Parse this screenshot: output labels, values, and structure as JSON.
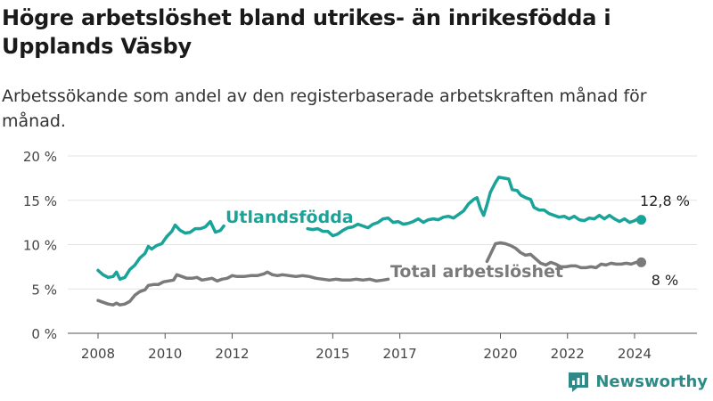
{
  "title": "Högre arbetslöshet bland utrikes- än inrikesfödda i Upplands Väsby",
  "subtitle": "Arbetssökande som andel av den registerbaserade arbetskraften månad för månad.",
  "brand": "Newsworthy",
  "colors": {
    "utlandsfodda": "#1aa398",
    "total": "#7a7a7a",
    "grid": "#e3e3e3",
    "axis": "#444444",
    "brand": "#2d8a86"
  },
  "chart_data": {
    "type": "line",
    "ylim": [
      0,
      20
    ],
    "y_ticks": [
      0,
      5,
      10,
      15,
      20
    ],
    "y_tick_labels": [
      "0 %",
      "5 %",
      "10 %",
      "15 %",
      "20 %"
    ],
    "x_ticks": [
      2008,
      2010,
      2012,
      2015,
      2017,
      2020,
      2022,
      2024
    ],
    "x_tick_labels": [
      "2008",
      "2010",
      "2012",
      "2015",
      "2017",
      "2020",
      "2022",
      "2024"
    ],
    "grid": "horizontal",
    "legend": "inline labels",
    "series": [
      {
        "name": "Utlandsfödda",
        "end_label": "12,8 %",
        "segments": [
          [
            [
              2008.0,
              7.1
            ],
            [
              2008.15,
              6.6
            ],
            [
              2008.3,
              6.3
            ],
            [
              2008.45,
              6.4
            ],
            [
              2008.55,
              6.9
            ],
            [
              2008.65,
              6.1
            ],
            [
              2008.8,
              6.3
            ],
            [
              2008.95,
              7.2
            ],
            [
              2009.1,
              7.7
            ],
            [
              2009.25,
              8.5
            ],
            [
              2009.4,
              9.0
            ],
            [
              2009.5,
              9.8
            ],
            [
              2009.6,
              9.5
            ],
            [
              2009.75,
              9.9
            ],
            [
              2009.9,
              10.1
            ],
            [
              2010.05,
              10.9
            ],
            [
              2010.2,
              11.5
            ],
            [
              2010.3,
              12.2
            ],
            [
              2010.45,
              11.6
            ],
            [
              2010.6,
              11.3
            ],
            [
              2010.75,
              11.4
            ],
            [
              2010.9,
              11.8
            ],
            [
              2011.05,
              11.8
            ],
            [
              2011.2,
              12.0
            ],
            [
              2011.35,
              12.6
            ],
            [
              2011.5,
              11.4
            ],
            [
              2011.65,
              11.6
            ],
            [
              2011.75,
              12.1
            ]
          ],
          [
            [
              2014.25,
              11.8
            ],
            [
              2014.4,
              11.7
            ],
            [
              2014.55,
              11.8
            ],
            [
              2014.7,
              11.5
            ],
            [
              2014.85,
              11.5
            ],
            [
              2015.0,
              11.0
            ],
            [
              2015.15,
              11.2
            ],
            [
              2015.3,
              11.6
            ],
            [
              2015.45,
              11.9
            ],
            [
              2015.6,
              12.0
            ],
            [
              2015.75,
              12.3
            ],
            [
              2015.9,
              12.1
            ],
            [
              2016.05,
              11.9
            ],
            [
              2016.2,
              12.3
            ],
            [
              2016.35,
              12.5
            ],
            [
              2016.5,
              12.9
            ],
            [
              2016.65,
              13.0
            ],
            [
              2016.8,
              12.5
            ],
            [
              2016.95,
              12.6
            ],
            [
              2017.1,
              12.3
            ],
            [
              2017.25,
              12.4
            ],
            [
              2017.4,
              12.6
            ],
            [
              2017.55,
              12.9
            ],
            [
              2017.7,
              12.5
            ],
            [
              2017.85,
              12.8
            ],
            [
              2018.0,
              12.9
            ],
            [
              2018.15,
              12.8
            ],
            [
              2018.3,
              13.1
            ],
            [
              2018.45,
              13.2
            ],
            [
              2018.6,
              13.0
            ],
            [
              2018.75,
              13.4
            ],
            [
              2018.9,
              13.8
            ],
            [
              2019.05,
              14.6
            ],
            [
              2019.2,
              15.1
            ],
            [
              2019.3,
              15.3
            ],
            [
              2019.4,
              14.1
            ],
            [
              2019.5,
              13.3
            ],
            [
              2019.6,
              14.5
            ],
            [
              2019.7,
              15.9
            ],
            [
              2019.85,
              17.0
            ],
            [
              2019.95,
              17.6
            ],
            [
              2020.1,
              17.5
            ],
            [
              2020.25,
              17.4
            ],
            [
              2020.35,
              16.2
            ],
            [
              2020.5,
              16.1
            ],
            [
              2020.6,
              15.6
            ],
            [
              2020.75,
              15.3
            ],
            [
              2020.9,
              15.1
            ],
            [
              2021.0,
              14.2
            ],
            [
              2021.15,
              13.9
            ],
            [
              2021.3,
              13.9
            ],
            [
              2021.45,
              13.5
            ],
            [
              2021.6,
              13.3
            ],
            [
              2021.75,
              13.1
            ],
            [
              2021.9,
              13.2
            ],
            [
              2022.05,
              12.9
            ],
            [
              2022.2,
              13.2
            ],
            [
              2022.35,
              12.8
            ],
            [
              2022.5,
              12.7
            ],
            [
              2022.65,
              13.0
            ],
            [
              2022.8,
              12.9
            ],
            [
              2022.95,
              13.3
            ],
            [
              2023.1,
              12.9
            ],
            [
              2023.25,
              13.3
            ],
            [
              2023.4,
              12.9
            ],
            [
              2023.55,
              12.6
            ],
            [
              2023.7,
              12.9
            ],
            [
              2023.85,
              12.5
            ],
            [
              2024.0,
              12.7
            ],
            [
              2024.1,
              12.9
            ],
            [
              2024.2,
              12.8
            ]
          ]
        ]
      },
      {
        "name": "Total arbetslöshet",
        "end_label": "8 %",
        "segments": [
          [
            [
              2008.0,
              3.7
            ],
            [
              2008.15,
              3.5
            ],
            [
              2008.3,
              3.3
            ],
            [
              2008.45,
              3.2
            ],
            [
              2008.55,
              3.4
            ],
            [
              2008.65,
              3.2
            ],
            [
              2008.8,
              3.3
            ],
            [
              2008.95,
              3.6
            ],
            [
              2009.1,
              4.3
            ],
            [
              2009.25,
              4.7
            ],
            [
              2009.4,
              4.9
            ],
            [
              2009.5,
              5.4
            ],
            [
              2009.65,
              5.5
            ],
            [
              2009.8,
              5.5
            ],
            [
              2009.95,
              5.8
            ],
            [
              2010.1,
              5.9
            ],
            [
              2010.25,
              6.0
            ],
            [
              2010.35,
              6.6
            ],
            [
              2010.5,
              6.4
            ],
            [
              2010.65,
              6.2
            ],
            [
              2010.8,
              6.2
            ],
            [
              2010.95,
              6.3
            ],
            [
              2011.1,
              6.0
            ],
            [
              2011.25,
              6.1
            ],
            [
              2011.4,
              6.2
            ],
            [
              2011.55,
              5.9
            ],
            [
              2011.7,
              6.1
            ],
            [
              2011.85,
              6.2
            ],
            [
              2012.0,
              6.5
            ],
            [
              2012.15,
              6.4
            ],
            [
              2012.35,
              6.4
            ],
            [
              2012.55,
              6.5
            ],
            [
              2012.75,
              6.5
            ],
            [
              2012.95,
              6.7
            ],
            [
              2013.05,
              6.9
            ],
            [
              2013.2,
              6.6
            ],
            [
              2013.35,
              6.5
            ],
            [
              2013.5,
              6.6
            ],
            [
              2013.7,
              6.5
            ],
            [
              2013.9,
              6.4
            ],
            [
              2014.1,
              6.5
            ],
            [
              2014.3,
              6.4
            ],
            [
              2014.5,
              6.2
            ],
            [
              2014.7,
              6.1
            ],
            [
              2014.9,
              6.0
            ],
            [
              2015.1,
              6.1
            ],
            [
              2015.3,
              6.0
            ],
            [
              2015.5,
              6.0
            ],
            [
              2015.7,
              6.1
            ],
            [
              2015.9,
              6.0
            ],
            [
              2016.1,
              6.1
            ],
            [
              2016.3,
              5.9
            ],
            [
              2016.5,
              6.0
            ],
            [
              2016.65,
              6.1
            ]
          ],
          [
            [
              2019.6,
              8.1
            ],
            [
              2019.75,
              9.3
            ],
            [
              2019.85,
              10.1
            ],
            [
              2020.0,
              10.2
            ],
            [
              2020.15,
              10.1
            ],
            [
              2020.3,
              9.9
            ],
            [
              2020.45,
              9.6
            ],
            [
              2020.6,
              9.1
            ],
            [
              2020.75,
              8.8
            ],
            [
              2020.9,
              8.9
            ],
            [
              2021.05,
              8.4
            ],
            [
              2021.2,
              7.9
            ],
            [
              2021.35,
              7.7
            ],
            [
              2021.5,
              8.0
            ],
            [
              2021.65,
              7.8
            ],
            [
              2021.8,
              7.5
            ],
            [
              2021.95,
              7.5
            ],
            [
              2022.1,
              7.6
            ],
            [
              2022.25,
              7.6
            ],
            [
              2022.4,
              7.4
            ],
            [
              2022.55,
              7.4
            ],
            [
              2022.7,
              7.5
            ],
            [
              2022.85,
              7.4
            ],
            [
              2023.0,
              7.8
            ],
            [
              2023.15,
              7.7
            ],
            [
              2023.3,
              7.9
            ],
            [
              2023.45,
              7.8
            ],
            [
              2023.6,
              7.8
            ],
            [
              2023.75,
              7.9
            ],
            [
              2023.9,
              7.8
            ],
            [
              2024.05,
              8.0
            ],
            [
              2024.2,
              8.0
            ]
          ]
        ]
      }
    ]
  }
}
